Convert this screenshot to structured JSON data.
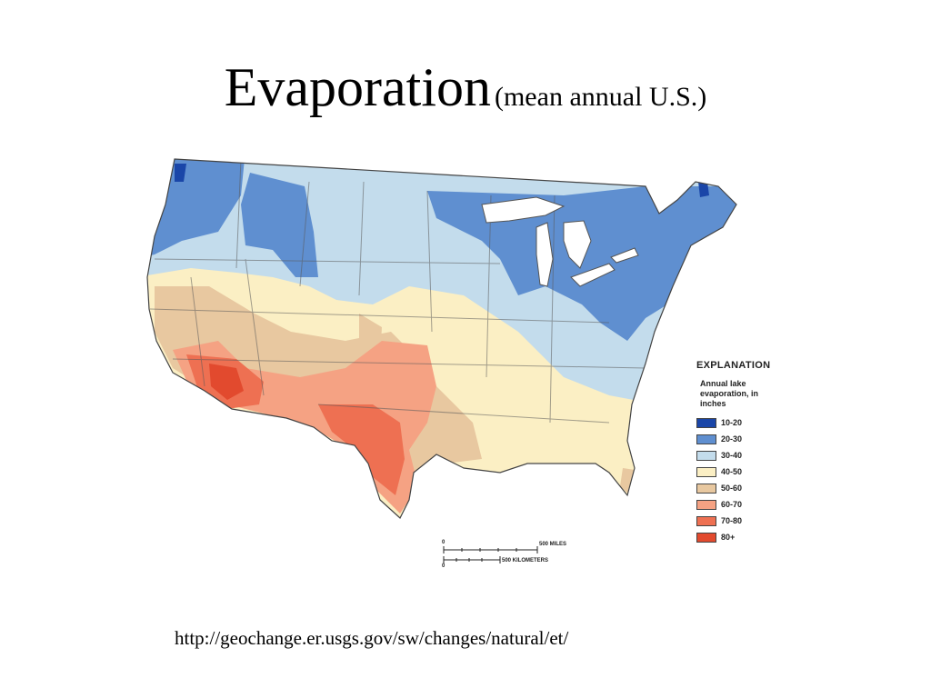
{
  "slide": {
    "title": "Evaporation",
    "subtitle": "(mean annual U.S.)",
    "source_url": "http://geochange.er.usgs.gov/sw/changes/natural/et/"
  },
  "map": {
    "subject": "Annual lake evaporation, conterminous United States",
    "legend": {
      "heading": "EXPLANATION",
      "subheading": "Annual lake evaporation, in inches",
      "classes": [
        {
          "label": "10-20",
          "color": "#1a46a8"
        },
        {
          "label": "20-30",
          "color": "#5f8fd0"
        },
        {
          "label": "30-40",
          "color": "#c3dcec"
        },
        {
          "label": "40-50",
          "color": "#fbefc4"
        },
        {
          "label": "50-60",
          "color": "#e8c8a0"
        },
        {
          "label": "60-70",
          "color": "#f5a283"
        },
        {
          "label": "70-80",
          "color": "#ee7052"
        },
        {
          "label": "80+",
          "color": "#e24a2e"
        }
      ]
    },
    "scale": {
      "miles_label": "500 MILES",
      "km_label": "500 KILOMETERS",
      "zero_label": "0"
    }
  }
}
